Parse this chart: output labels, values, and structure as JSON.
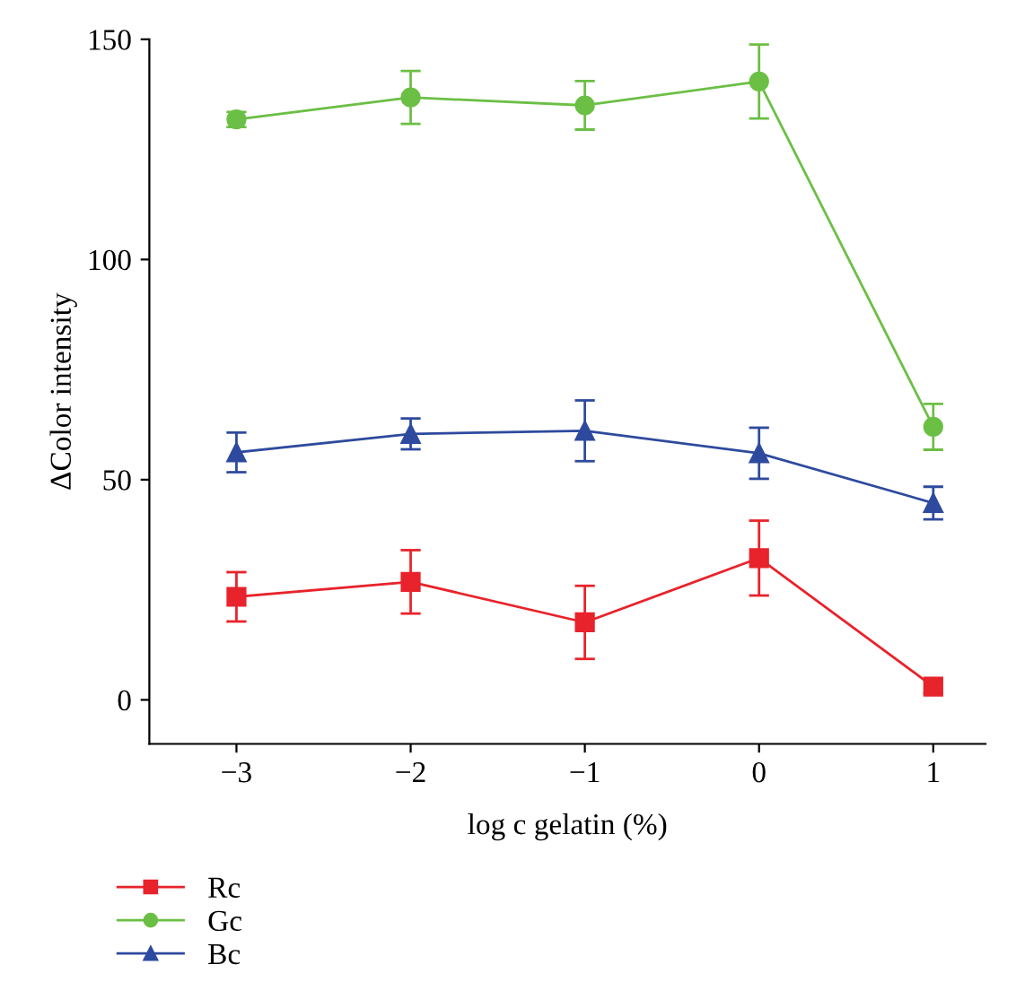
{
  "chart_data": {
    "type": "line",
    "xlabel": "log c gelatin (%)",
    "ylabel": "ΔColor intensity",
    "x": [
      -3,
      -2,
      -1,
      0,
      1
    ],
    "xlim": [
      -3.5,
      1.3
    ],
    "xticks": [
      -3,
      -2,
      -1,
      0,
      1
    ],
    "ylim": [
      -10,
      150
    ],
    "yticks": [
      0,
      50,
      100,
      150
    ],
    "grid": false,
    "legend": "bottom left",
    "line_style": "solid",
    "series": [
      {
        "name": "Rc",
        "color": "#e8232b",
        "marker": "square",
        "values": [
          23.4,
          26.8,
          17.6,
          32.2,
          3
        ],
        "errors": [
          5.6,
          7.2,
          8.3,
          8.5,
          1.5
        ]
      },
      {
        "name": "Gc",
        "color": "#6cbf45",
        "marker": "circle",
        "values": [
          131.8,
          136.8,
          135,
          140.4,
          62
        ],
        "errors": [
          1.7,
          6,
          5.5,
          8.4,
          5.2
        ]
      },
      {
        "name": "Bc",
        "color": "#2e4a9e",
        "marker": "triangle",
        "values": [
          56.2,
          60.4,
          61.1,
          56,
          44.7
        ],
        "errors": [
          4.5,
          3.5,
          6.9,
          5.8,
          3.7
        ]
      }
    ]
  }
}
